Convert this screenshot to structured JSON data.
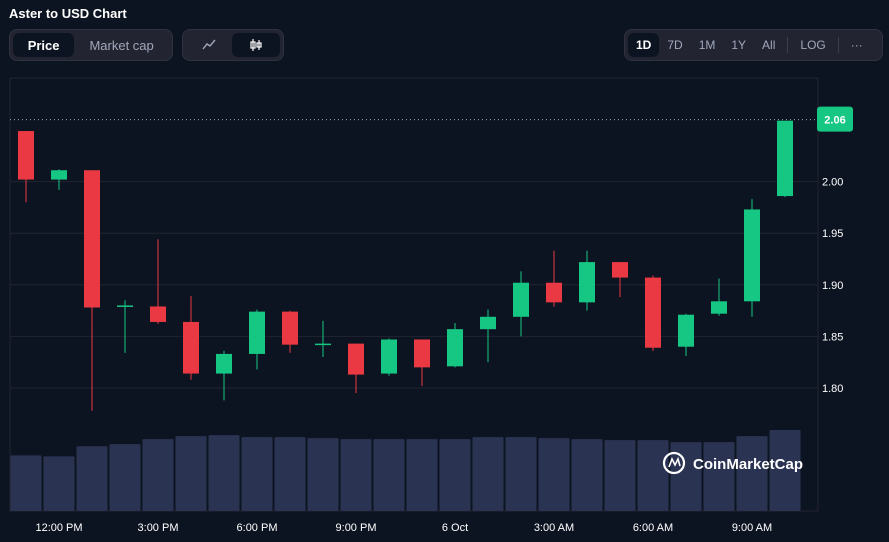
{
  "page": {
    "title": "Aster to USD Chart"
  },
  "toolbar": {
    "metric_tabs": [
      {
        "label": "Price",
        "active": true
      },
      {
        "label": "Market cap",
        "active": false
      }
    ],
    "chart_type_icons": [
      {
        "icon": "line-chart-icon",
        "active": false
      },
      {
        "icon": "candlestick-icon",
        "active": true
      }
    ],
    "ranges": [
      {
        "label": "1D",
        "active": true
      },
      {
        "label": "7D",
        "active": false
      },
      {
        "label": "1M",
        "active": false
      },
      {
        "label": "1Y",
        "active": false
      },
      {
        "label": "All",
        "active": false
      }
    ],
    "log_label": "LOG",
    "more_label": "···"
  },
  "colors": {
    "background": "#0d1421",
    "up": "#16c784",
    "down": "#ea3943",
    "volume": "#2b3353",
    "grid": "#222531",
    "price_label_bg": "#16c784"
  },
  "watermark": {
    "text": "CoinMarketCap"
  },
  "current_price_label": "2.06",
  "chart_data": {
    "type": "candlestick",
    "y_ticks": [
      "1.80",
      "1.85",
      "1.90",
      "1.95",
      "2.00"
    ],
    "x_ticks": [
      "12:00 PM",
      "3:00 PM",
      "6:00 PM",
      "9:00 PM",
      "6 Oct",
      "3:00 AM",
      "6:00 AM",
      "9:00 AM"
    ],
    "ylim": [
      1.7,
      2.1
    ],
    "current_price": 2.06,
    "candles": [
      {
        "o": 2.049,
        "h": 2.049,
        "l": 1.98,
        "c": 2.002
      },
      {
        "o": 2.002,
        "h": 2.012,
        "l": 1.992,
        "c": 2.011
      },
      {
        "o": 2.011,
        "h": 2.011,
        "l": 1.778,
        "c": 1.878
      },
      {
        "o": 1.879,
        "h": 1.885,
        "l": 1.834,
        "c": 1.88
      },
      {
        "o": 1.879,
        "h": 1.944,
        "l": 1.862,
        "c": 1.864
      },
      {
        "o": 1.864,
        "h": 1.889,
        "l": 1.808,
        "c": 1.814
      },
      {
        "o": 1.814,
        "h": 1.836,
        "l": 1.788,
        "c": 1.833
      },
      {
        "o": 1.833,
        "h": 1.876,
        "l": 1.818,
        "c": 1.874
      },
      {
        "o": 1.874,
        "h": 1.875,
        "l": 1.834,
        "c": 1.842
      },
      {
        "o": 1.842,
        "h": 1.865,
        "l": 1.83,
        "c": 1.843
      },
      {
        "o": 1.843,
        "h": 1.843,
        "l": 1.795,
        "c": 1.813
      },
      {
        "o": 1.814,
        "h": 1.848,
        "l": 1.812,
        "c": 1.847
      },
      {
        "o": 1.847,
        "h": 1.847,
        "l": 1.802,
        "c": 1.82
      },
      {
        "o": 1.821,
        "h": 1.863,
        "l": 1.82,
        "c": 1.857
      },
      {
        "o": 1.857,
        "h": 1.876,
        "l": 1.825,
        "c": 1.869
      },
      {
        "o": 1.869,
        "h": 1.913,
        "l": 1.85,
        "c": 1.902
      },
      {
        "o": 1.902,
        "h": 1.933,
        "l": 1.879,
        "c": 1.883
      },
      {
        "o": 1.883,
        "h": 1.933,
        "l": 1.875,
        "c": 1.922
      },
      {
        "o": 1.922,
        "h": 1.922,
        "l": 1.888,
        "c": 1.907
      },
      {
        "o": 1.907,
        "h": 1.909,
        "l": 1.836,
        "c": 1.839
      },
      {
        "o": 1.84,
        "h": 1.872,
        "l": 1.831,
        "c": 1.871
      },
      {
        "o": 1.872,
        "h": 1.906,
        "l": 1.87,
        "c": 1.884
      },
      {
        "o": 1.884,
        "h": 1.983,
        "l": 1.869,
        "c": 1.973
      },
      {
        "o": 1.986,
        "h": 2.059,
        "l": 1.985,
        "c": 2.059
      }
    ],
    "volume": [
      55,
      54,
      64,
      66,
      71,
      74,
      75,
      73,
      73,
      72,
      71,
      71,
      71,
      71,
      73,
      73,
      72,
      71,
      70,
      70,
      68,
      68,
      74,
      80
    ]
  }
}
